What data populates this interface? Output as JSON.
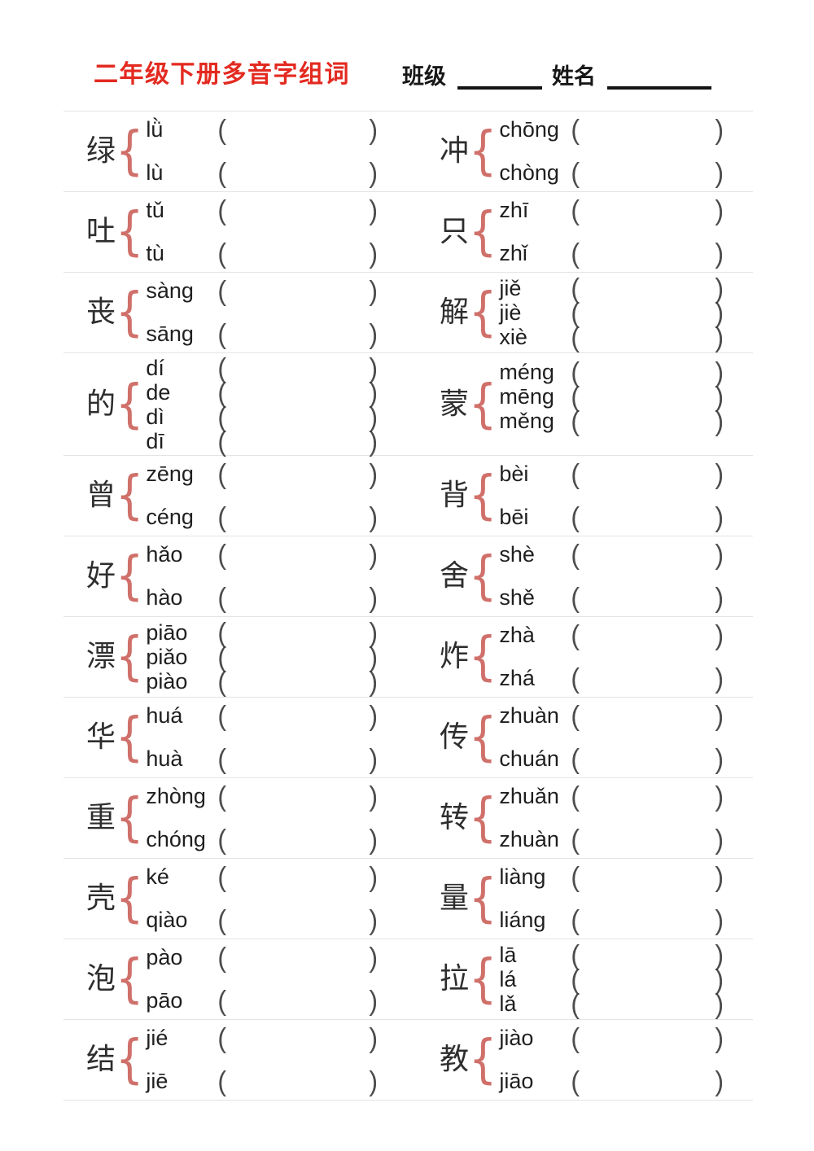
{
  "header": {
    "title": "二年级下册多音字组词",
    "class_label": "班级",
    "name_label": "姓名"
  },
  "punctuation": {
    "open_paren": "(",
    "close_paren": ")",
    "brace": "{"
  },
  "colors": {
    "title_red": "#e32a20",
    "brace_salmon": "#d0706a",
    "divider_gray": "#e4e4e4",
    "text_dark": "#1f1f1f"
  },
  "rows": [
    {
      "left": {
        "char": "绿",
        "readings": [
          "lǜ",
          "lù"
        ]
      },
      "right": {
        "char": "冲",
        "readings": [
          "chōng",
          "chòng"
        ]
      }
    },
    {
      "left": {
        "char": "吐",
        "readings": [
          "tǔ",
          "tù"
        ]
      },
      "right": {
        "char": "只",
        "readings": [
          "zhī",
          "zhǐ"
        ]
      }
    },
    {
      "left": {
        "char": "丧",
        "readings": [
          "sàng",
          "sāng"
        ]
      },
      "right": {
        "char": "解",
        "readings": [
          "jiě",
          "jiè",
          "xiè"
        ]
      }
    },
    {
      "left": {
        "char": "的",
        "readings": [
          "dí",
          "de",
          "dì",
          "dī"
        ]
      },
      "right": {
        "char": "蒙",
        "readings": [
          "méng",
          "mēng",
          "měng"
        ]
      }
    },
    {
      "left": {
        "char": "曾",
        "readings": [
          "zēng",
          "céng"
        ]
      },
      "right": {
        "char": "背",
        "readings": [
          "bèi",
          "bēi"
        ]
      }
    },
    {
      "left": {
        "char": "好",
        "readings": [
          "hǎo",
          "hào"
        ]
      },
      "right": {
        "char": "舍",
        "readings": [
          "shè",
          "shě"
        ]
      }
    },
    {
      "left": {
        "char": "漂",
        "readings": [
          "piāo",
          "piǎo",
          "piào"
        ]
      },
      "right": {
        "char": "炸",
        "readings": [
          "zhà",
          "zhá"
        ]
      }
    },
    {
      "left": {
        "char": "华",
        "readings": [
          "huá",
          "huà"
        ]
      },
      "right": {
        "char": "传",
        "readings": [
          "zhuàn",
          "chuán"
        ]
      }
    },
    {
      "left": {
        "char": "重",
        "readings": [
          "zhòng",
          "chóng"
        ]
      },
      "right": {
        "char": "转",
        "readings": [
          "zhuǎn",
          "zhuàn"
        ]
      }
    },
    {
      "left": {
        "char": "壳",
        "readings": [
          "ké",
          "qiào"
        ]
      },
      "right": {
        "char": "量",
        "readings": [
          "liàng",
          "liáng"
        ]
      }
    },
    {
      "left": {
        "char": "泡",
        "readings": [
          "pào",
          "pāo"
        ]
      },
      "right": {
        "char": "拉",
        "readings": [
          "lā",
          "lá",
          "lǎ"
        ]
      }
    },
    {
      "left": {
        "char": "结",
        "readings": [
          "jié",
          "jiē"
        ]
      },
      "right": {
        "char": "教",
        "readings": [
          "jiào",
          "jiāo"
        ]
      }
    }
  ]
}
